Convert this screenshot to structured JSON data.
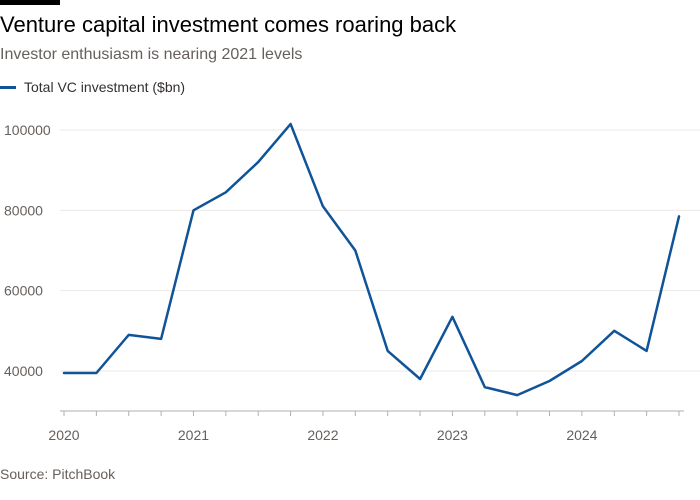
{
  "header": {
    "title": "Venture capital investment comes roaring back",
    "subtitle": "Investor enthusiasm is nearing 2021 levels"
  },
  "legend": {
    "label": "Total VC investment ($bn)"
  },
  "source": "Source: PitchBook",
  "colors": {
    "series": "#0f5499",
    "grid": "#ebe8e4",
    "axis": "#b5aea8",
    "text": "#66605c"
  },
  "chart_data": {
    "type": "line",
    "title": "Venture capital investment comes roaring back",
    "subtitle": "Investor enthusiasm is nearing 2021 levels",
    "xlabel": "",
    "ylabel": "",
    "x_unit": "quarter",
    "x": [
      "2020 Q1",
      "2020 Q2",
      "2020 Q3",
      "2020 Q4",
      "2021 Q1",
      "2021 Q2",
      "2021 Q3",
      "2021 Q4",
      "2022 Q1",
      "2022 Q2",
      "2022 Q3",
      "2022 Q4",
      "2023 Q1",
      "2023 Q2",
      "2023 Q3",
      "2023 Q4",
      "2024 Q1",
      "2024 Q2",
      "2024 Q3",
      "2024 Q4"
    ],
    "x_tick_labels": [
      "2020",
      "2021",
      "2022",
      "2023",
      "2024"
    ],
    "y_ticks": [
      40000,
      60000,
      80000,
      100000
    ],
    "y_tick_labels": [
      "40000",
      "60000",
      "80000",
      "100000"
    ],
    "ylim": [
      30000,
      105000
    ],
    "grid": true,
    "legend_position": "top-left",
    "series": [
      {
        "name": "Total VC investment ($bn)",
        "values": [
          39500,
          39500,
          49000,
          48000,
          80000,
          84500,
          92000,
          101500,
          81000,
          70000,
          45000,
          38000,
          53500,
          36000,
          34000,
          37500,
          42500,
          50000,
          45000,
          78500
        ]
      }
    ]
  }
}
